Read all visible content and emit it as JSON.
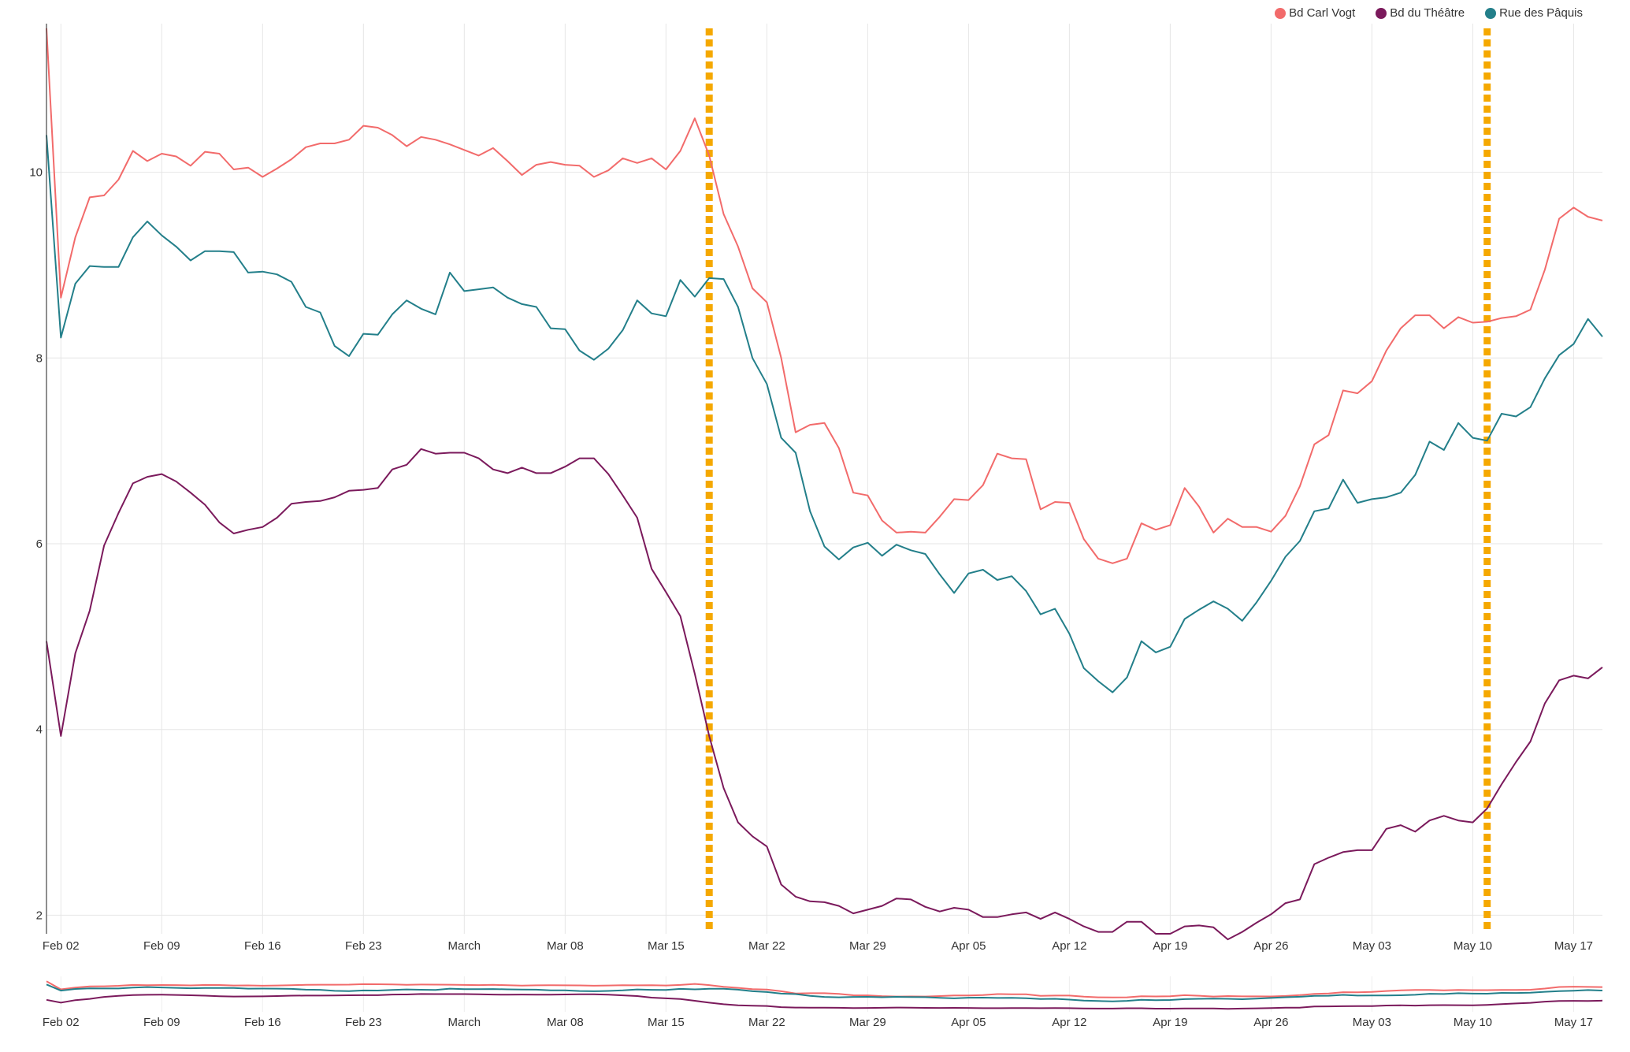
{
  "chart_data": {
    "type": "line",
    "title": "",
    "xlabel": "",
    "ylabel": "",
    "x_start": "2020-02-01",
    "x_end": "2020-05-19",
    "ylim": [
      1.8,
      11.6
    ],
    "y_ticks": [
      "2",
      "4",
      "6",
      "8",
      "10"
    ],
    "x_ticks": [
      {
        "label": "Feb 02",
        "date": "2020-02-02"
      },
      {
        "label": "Feb 09",
        "date": "2020-02-09"
      },
      {
        "label": "Feb 16",
        "date": "2020-02-16"
      },
      {
        "label": "Feb 23",
        "date": "2020-02-23"
      },
      {
        "label": "March",
        "date": "2020-03-01"
      },
      {
        "label": "Mar 08",
        "date": "2020-03-08"
      },
      {
        "label": "Mar 15",
        "date": "2020-03-15"
      },
      {
        "label": "Mar 22",
        "date": "2020-03-22"
      },
      {
        "label": "Mar 29",
        "date": "2020-03-29"
      },
      {
        "label": "Apr 05",
        "date": "2020-04-05"
      },
      {
        "label": "Apr 12",
        "date": "2020-04-12"
      },
      {
        "label": "Apr 19",
        "date": "2020-04-19"
      },
      {
        "label": "Apr 26",
        "date": "2020-04-26"
      },
      {
        "label": "May 03",
        "date": "2020-05-03"
      },
      {
        "label": "May 10",
        "date": "2020-05-10"
      },
      {
        "label": "May 17",
        "date": "2020-05-17"
      }
    ],
    "grid": true,
    "legend_position": "top-right",
    "markers": [
      "2020-03-18",
      "2020-05-11"
    ],
    "marker_color": "#f5a800",
    "series": [
      {
        "name": "Bd Carl Vogt",
        "color": "#f26b6b",
        "values": [
          11.55,
          8.65,
          9.3,
          9.73,
          9.75,
          9.92,
          10.23,
          10.12,
          10.2,
          10.17,
          10.07,
          10.22,
          10.2,
          10.03,
          10.05,
          9.95,
          10.04,
          10.14,
          10.27,
          10.31,
          10.31,
          10.35,
          10.5,
          10.48,
          10.4,
          10.28,
          10.38,
          10.35,
          10.3,
          10.24,
          10.18,
          10.26,
          10.12,
          9.97,
          10.08,
          10.11,
          10.08,
          10.07,
          9.95,
          10.02,
          10.15,
          10.1,
          10.15,
          10.03,
          10.23,
          10.58,
          10.18,
          9.55,
          9.2,
          8.75,
          8.6,
          8.0,
          7.2,
          7.28,
          7.3,
          7.03,
          6.55,
          6.52,
          6.25,
          6.12,
          6.13,
          6.12,
          6.29,
          6.48,
          6.47,
          6.63,
          6.97,
          6.92,
          6.91,
          6.37,
          6.45,
          6.44,
          6.05,
          5.84,
          5.79,
          5.84,
          6.22,
          6.15,
          6.2,
          6.6,
          6.4,
          6.12,
          6.27,
          6.18,
          6.18,
          6.13,
          6.3,
          6.62,
          7.07,
          7.17,
          7.65,
          7.62,
          7.75,
          8.08,
          8.32,
          8.46,
          8.46,
          8.32,
          8.44,
          8.38,
          8.39,
          8.43,
          8.45,
          8.52,
          8.95,
          9.5,
          9.62,
          9.52,
          9.48
        ]
      },
      {
        "name": "Bd du Théâtre",
        "color": "#7b1a5c",
        "values": [
          4.95,
          3.93,
          4.82,
          5.28,
          5.98,
          6.33,
          6.65,
          6.72,
          6.75,
          6.67,
          6.55,
          6.42,
          6.23,
          6.11,
          6.15,
          6.18,
          6.28,
          6.43,
          6.45,
          6.46,
          6.5,
          6.57,
          6.58,
          6.6,
          6.8,
          6.85,
          7.02,
          6.97,
          6.98,
          6.98,
          6.92,
          6.8,
          6.76,
          6.82,
          6.76,
          6.76,
          6.83,
          6.92,
          6.92,
          6.75,
          6.52,
          6.28,
          5.73,
          5.48,
          5.22,
          4.6,
          3.93,
          3.37,
          3.0,
          2.85,
          2.74,
          2.33,
          2.2,
          2.15,
          2.14,
          2.1,
          2.02,
          2.06,
          2.1,
          2.18,
          2.17,
          2.09,
          2.04,
          2.08,
          2.06,
          1.98,
          1.98,
          2.01,
          2.03,
          1.96,
          2.03,
          1.96,
          1.88,
          1.82,
          1.82,
          1.93,
          1.93,
          1.8,
          1.8,
          1.88,
          1.89,
          1.87,
          1.74,
          1.82,
          1.92,
          2.01,
          2.13,
          2.17,
          2.55,
          2.62,
          2.68,
          2.7,
          2.7,
          2.93,
          2.97,
          2.9,
          3.02,
          3.07,
          3.02,
          3.0,
          3.15,
          3.41,
          3.65,
          3.87,
          4.28,
          4.53,
          4.58,
          4.55,
          4.67
        ]
      },
      {
        "name": "Rue des Pâquis",
        "color": "#237f8a",
        "values": [
          10.4,
          8.22,
          8.8,
          8.99,
          8.98,
          8.98,
          9.3,
          9.47,
          9.32,
          9.2,
          9.05,
          9.15,
          9.15,
          9.14,
          8.92,
          8.93,
          8.9,
          8.82,
          8.55,
          8.49,
          8.13,
          8.02,
          8.26,
          8.25,
          8.47,
          8.62,
          8.53,
          8.47,
          8.92,
          8.72,
          8.74,
          8.76,
          8.65,
          8.58,
          8.55,
          8.32,
          8.31,
          8.08,
          7.98,
          8.1,
          8.3,
          8.62,
          8.48,
          8.45,
          8.84,
          8.66,
          8.86,
          8.85,
          8.55,
          8.0,
          7.72,
          7.14,
          6.98,
          6.35,
          5.97,
          5.83,
          5.96,
          6.01,
          5.87,
          5.99,
          5.93,
          5.89,
          5.67,
          5.47,
          5.68,
          5.72,
          5.61,
          5.65,
          5.49,
          5.24,
          5.3,
          5.03,
          4.66,
          4.52,
          4.4,
          4.56,
          4.95,
          4.83,
          4.89,
          5.19,
          5.29,
          5.38,
          5.3,
          5.17,
          5.37,
          5.6,
          5.86,
          6.03,
          6.35,
          6.38,
          6.69,
          6.44,
          6.48,
          6.5,
          6.55,
          6.74,
          7.1,
          7.01,
          7.3,
          7.14,
          7.11,
          7.4,
          7.37,
          7.47,
          7.78,
          8.03,
          8.15,
          8.42,
          8.23
        ]
      }
    ]
  }
}
